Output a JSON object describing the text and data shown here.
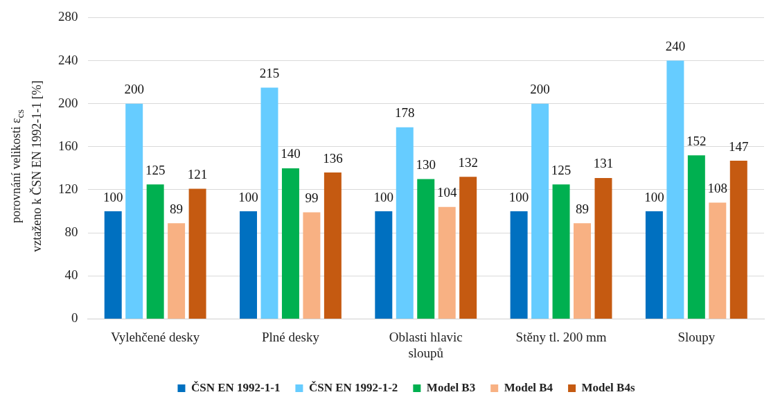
{
  "chart_data": {
    "type": "bar",
    "ylabel": "porovnání velikosti ε$_{cs}$\nvztaženo k ČSN EN 1992-1-1 [%]",
    "categories": [
      "Vylehčené desky",
      "Plné desky",
      "Oblasti hlavic sloupů",
      "Stěny tl. 200 mm",
      "Sloupy"
    ],
    "series": [
      {
        "name": "ČSN EN 1992-1-1",
        "color": "#0070c0",
        "values": [
          100,
          100,
          100,
          100,
          100
        ]
      },
      {
        "name": "ČSN EN 1992-1-2",
        "color": "#66ccff",
        "values": [
          200,
          215,
          178,
          200,
          240
        ]
      },
      {
        "name": "Model B3",
        "color": "#00b050",
        "values": [
          125,
          140,
          130,
          125,
          152
        ]
      },
      {
        "name": "Model B4",
        "color": "#f8b183",
        "values": [
          89,
          99,
          104,
          89,
          108
        ]
      },
      {
        "name": "Model B4s",
        "color": "#c55a11",
        "values": [
          121,
          136,
          132,
          131,
          147
        ]
      }
    ],
    "ylim": [
      0,
      280
    ],
    "yticks": [
      0,
      40,
      80,
      120,
      160,
      200,
      240,
      280
    ],
    "grid": "y",
    "legend": "bottom",
    "data_labels": true
  }
}
